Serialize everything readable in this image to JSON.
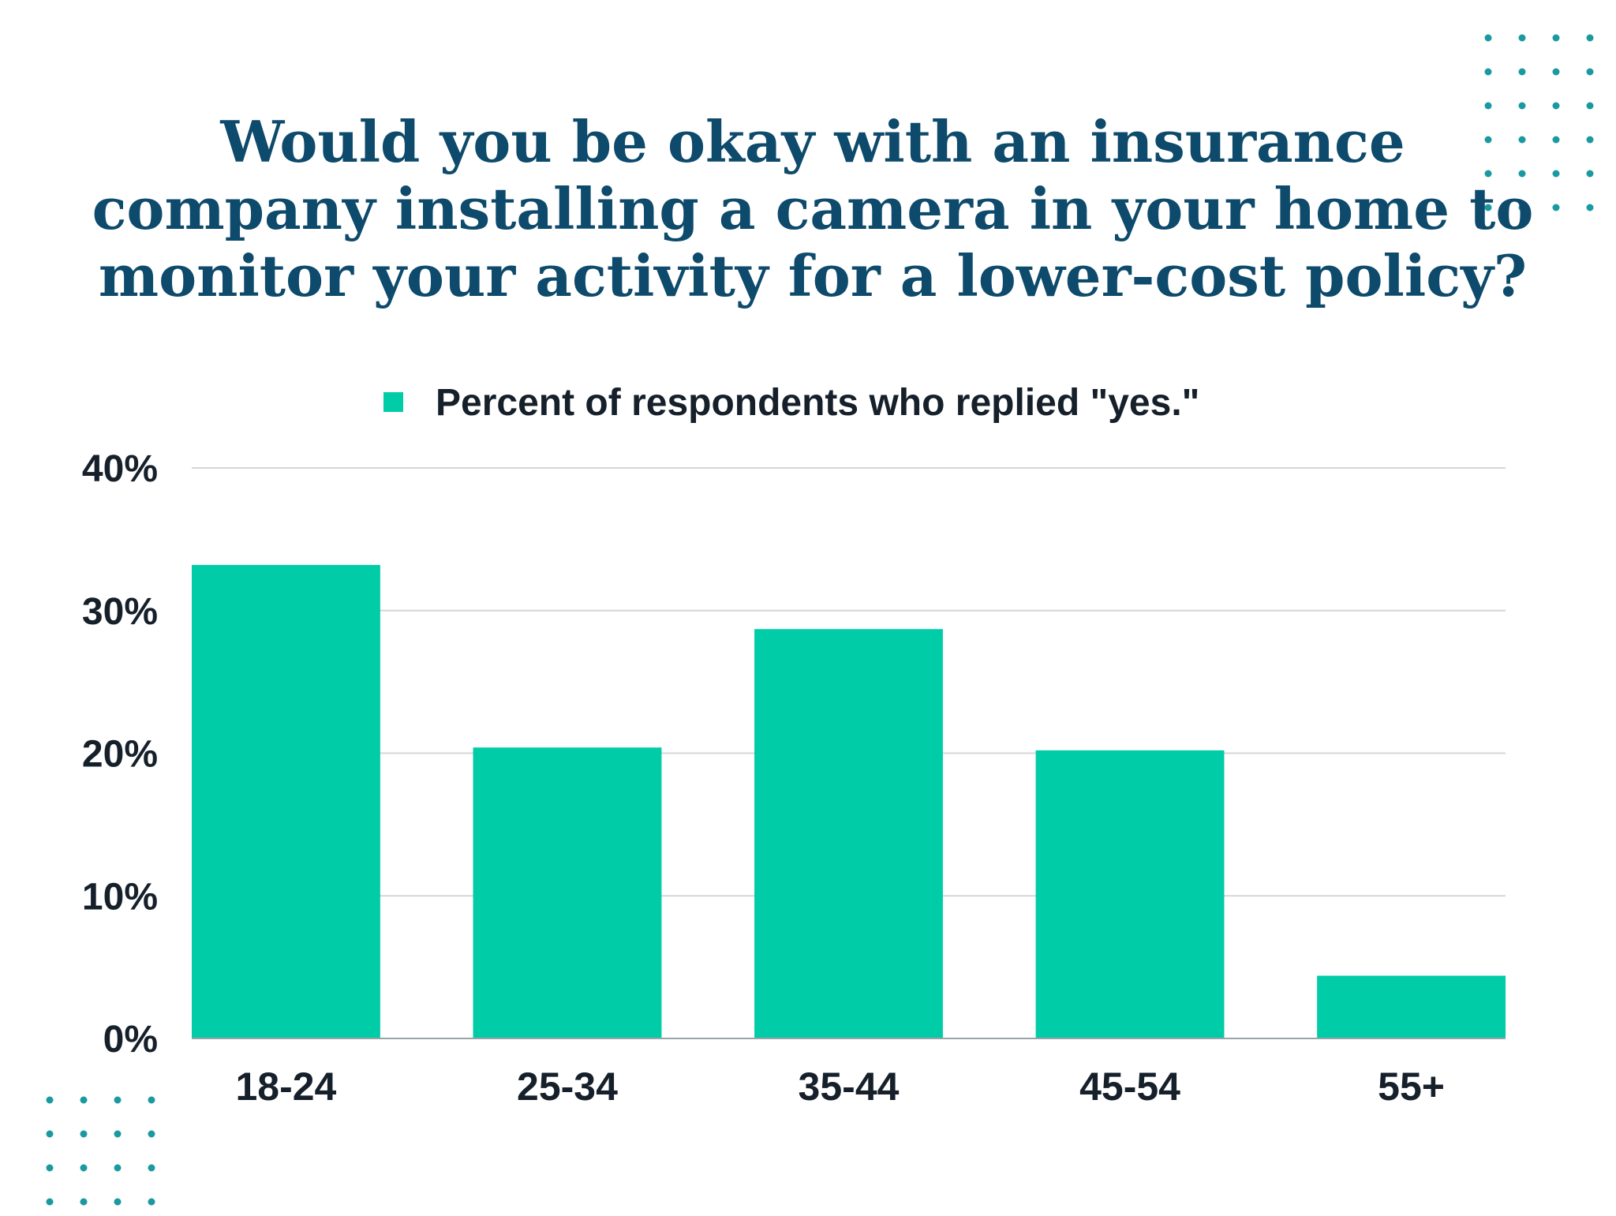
{
  "chart_data": {
    "type": "bar",
    "title_lines": [
      "Would you be okay with an insurance",
      "company installing a camera in your home to",
      "monitor your activity for a lower-cost policy?"
    ],
    "categories": [
      "18-24",
      "25-34",
      "35-44",
      "45-54",
      "55+"
    ],
    "series": [
      {
        "name": "Percent of respondents who replied \"yes.\"",
        "values": [
          33.2,
          20.4,
          28.7,
          20.2,
          4.4
        ]
      }
    ],
    "yticks": [
      "0%",
      "10%",
      "20%",
      "30%",
      "40%"
    ],
    "ylim": [
      0,
      40
    ],
    "grid": true,
    "legend": "top-center"
  },
  "colors": {
    "bar": "#00CCA7",
    "title": "#0D4A6B",
    "text": "#16202B",
    "grid": "#D6D6D6",
    "axis": "#9AA3A8",
    "dots": "#1A9AA0"
  }
}
